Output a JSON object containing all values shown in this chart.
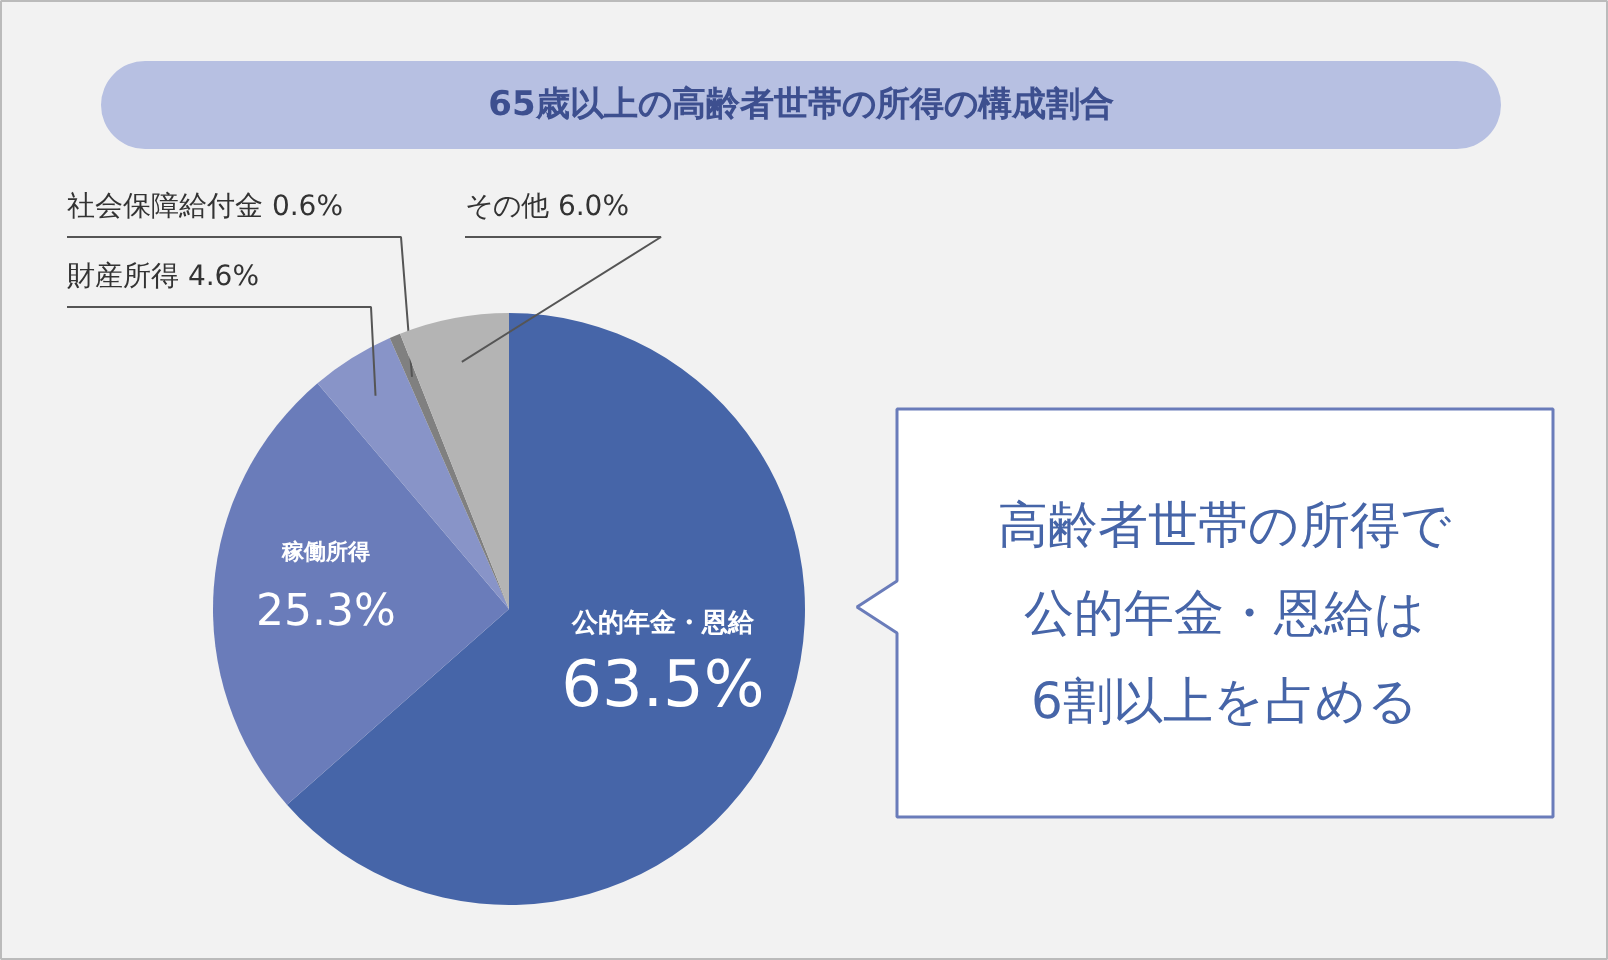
{
  "chart_data": {
    "type": "pie",
    "title": "65歳以上の高齢者世帯の所得の構成割合",
    "categories": [
      "公的年金・恩給",
      "稼働所得",
      "財産所得",
      "社会保障給付金",
      "その他"
    ],
    "values": [
      63.5,
      25.3,
      4.6,
      0.6,
      6.0
    ],
    "colors": [
      "#4665a8",
      "#6a7cba",
      "#8894c8",
      "#808080",
      "#b4b4b4"
    ],
    "value_labels": [
      "63.5%",
      "25.3%",
      "4.6%",
      "0.6%",
      "6.0%"
    ],
    "annotations": [
      "高齢者世帯の所得で",
      "公的年金・恩給は",
      "6割以上を占める"
    ]
  }
}
